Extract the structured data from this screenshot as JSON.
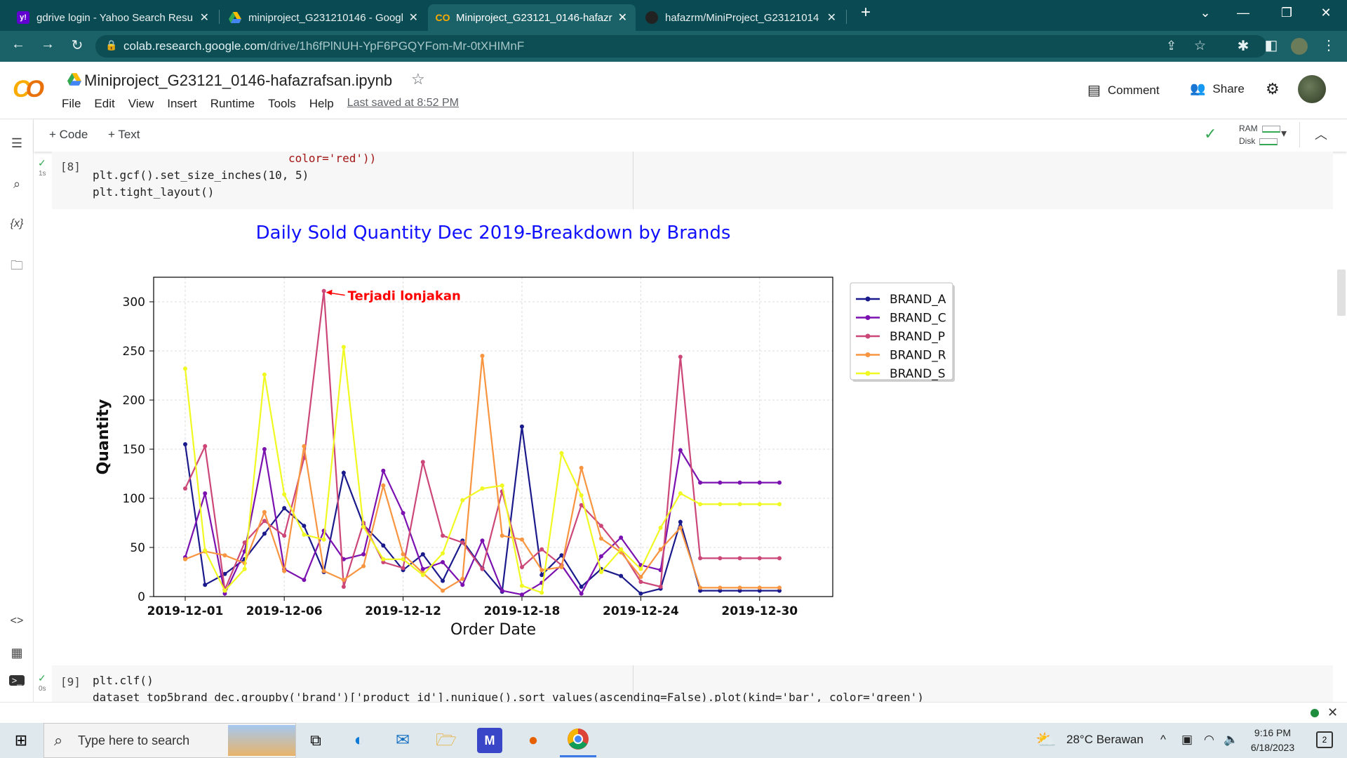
{
  "browser": {
    "tabs": [
      {
        "title": "gdrive login - Yahoo Search Resu",
        "icon": "yahoo-icon",
        "active": false
      },
      {
        "title": "miniproject_G231210146 - Googl",
        "icon": "google-drive-icon",
        "active": false
      },
      {
        "title": "Miniproject_G23121_0146-hafazr",
        "icon": "colab-icon",
        "active": true
      },
      {
        "title": "hafazrm/MiniProject_G23121014",
        "icon": "github-icon",
        "active": false
      }
    ],
    "url_host": "colab.research.google.com",
    "url_path": "/drive/1h6fPlNUH-YpF6PGQYFom-Mr-0tXHIMnF"
  },
  "notebook": {
    "title": "Miniproject_G23121_0146-hafazrafsan.ipynb",
    "menu": [
      "File",
      "Edit",
      "View",
      "Insert",
      "Runtime",
      "Tools",
      "Help"
    ],
    "last_saved": "Last saved at 8:52 PM",
    "comment_label": "Comment",
    "share_label": "Share",
    "add_code": "+ Code",
    "add_text": "+ Text",
    "ram_label": "RAM",
    "disk_label": "Disk"
  },
  "cells": [
    {
      "exec_count": "[8]",
      "time": "1s",
      "lines": [
        "color='red'))",
        "plt.gcf().set_size_inches(10, 5)",
        "plt.tight_layout()"
      ]
    },
    {
      "exec_count": "[9]",
      "time": "0s",
      "lines": [
        "plt.clf()",
        "dataset_top5brand_dec.groupby('brand')['product_id'].nunique().sort_values(ascending=False).plot(kind='bar', color='green')"
      ]
    }
  ],
  "chart_data": {
    "type": "line",
    "title": "Daily Sold Quantity Dec 2019-Breakdown by Brands",
    "xlabel": "Order Date",
    "ylabel": "Quantity",
    "xticks": [
      "2019-12-01",
      "2019-12-06",
      "2019-12-12",
      "2019-12-18",
      "2019-12-24",
      "2019-12-30"
    ],
    "x": [
      "2019-12-01",
      "2019-12-02",
      "2019-12-03",
      "2019-12-04",
      "2019-12-05",
      "2019-12-06",
      "2019-12-07",
      "2019-12-08",
      "2019-12-09",
      "2019-12-10",
      "2019-12-11",
      "2019-12-12",
      "2019-12-13",
      "2019-12-14",
      "2019-12-15",
      "2019-12-16",
      "2019-12-17",
      "2019-12-18",
      "2019-12-19",
      "2019-12-20",
      "2019-12-21",
      "2019-12-22",
      "2019-12-23",
      "2019-12-24",
      "2019-12-25",
      "2019-12-26",
      "2019-12-27",
      "2019-12-28",
      "2019-12-29",
      "2019-12-30",
      "2019-12-31"
    ],
    "ylim": [
      0,
      325
    ],
    "yticks": [
      0,
      50,
      100,
      150,
      200,
      250,
      300
    ],
    "grid": true,
    "legend_position": "outside-right",
    "series": [
      {
        "name": "BRAND_A",
        "color": "#1a1a8c",
        "values": [
          155,
          12,
          23,
          38,
          64,
          90,
          72,
          25,
          126,
          73,
          52,
          27,
          43,
          16,
          57,
          29,
          5,
          173,
          22,
          42,
          10,
          28,
          21,
          3,
          8,
          76,
          6,
          6,
          6,
          6,
          6
        ]
      },
      {
        "name": "BRAND_C",
        "color": "#7a11b0",
        "values": [
          40,
          105,
          3,
          46,
          150,
          28,
          17,
          67,
          38,
          43,
          128,
          85,
          28,
          35,
          12,
          57,
          6,
          2,
          14,
          32,
          3,
          41,
          60,
          32,
          27,
          149,
          116,
          116,
          116,
          116,
          116
        ]
      },
      {
        "name": "BRAND_P",
        "color": "#cc4778",
        "values": [
          110,
          153,
          7,
          55,
          77,
          62,
          141,
          311,
          10,
          75,
          35,
          29,
          137,
          62,
          55,
          28,
          107,
          30,
          48,
          32,
          93,
          72,
          47,
          15,
          10,
          244,
          39,
          39,
          39,
          39,
          39
        ]
      },
      {
        "name": "BRAND_R",
        "color": "#f89540",
        "values": [
          38,
          46,
          42,
          34,
          86,
          26,
          153,
          26,
          17,
          31,
          113,
          43,
          24,
          6,
          18,
          245,
          62,
          58,
          27,
          30,
          131,
          59,
          45,
          20,
          48,
          70,
          9,
          9,
          9,
          9,
          9
        ]
      },
      {
        "name": "BRAND_S",
        "color": "#f0f921",
        "values": [
          232,
          47,
          6,
          28,
          226,
          104,
          63,
          58,
          254,
          71,
          38,
          38,
          22,
          44,
          98,
          110,
          113,
          11,
          4,
          146,
          103,
          25,
          48,
          28,
          70,
          105,
          94,
          94,
          94,
          94,
          94
        ]
      }
    ],
    "annotation": {
      "text": "Terjadi lonjakan",
      "color": "red",
      "x": "2019-12-08",
      "y": 311
    }
  },
  "taskbar": {
    "search_placeholder": "Type here to search",
    "weather": "28°C  Berawan",
    "time": "9:16 PM",
    "date": "6/18/2023",
    "notif_count": "2"
  }
}
